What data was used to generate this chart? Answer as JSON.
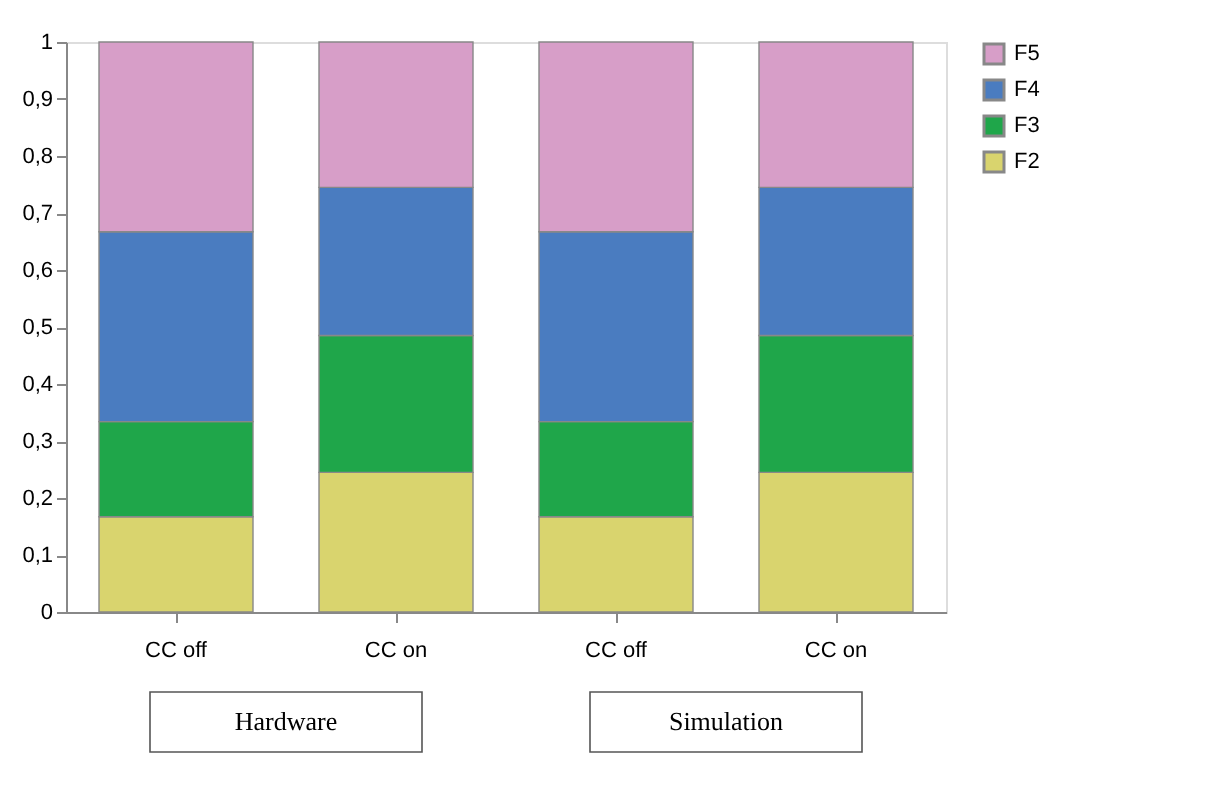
{
  "chart_data": {
    "type": "bar",
    "stacked": true,
    "categories": [
      "CC off",
      "CC on",
      "CC off",
      "CC on"
    ],
    "series": [
      {
        "name": "F2",
        "color": "#d9d46e",
        "values": [
          0.167,
          0.245,
          0.167,
          0.245
        ]
      },
      {
        "name": "F3",
        "color": "#1fa64a",
        "values": [
          0.167,
          0.24,
          0.167,
          0.24
        ]
      },
      {
        "name": "F4",
        "color": "#4a7cc0",
        "values": [
          0.333,
          0.26,
          0.333,
          0.26
        ]
      },
      {
        "name": "F5",
        "color": "#d79ec8",
        "values": [
          0.333,
          0.255,
          0.333,
          0.255
        ]
      }
    ],
    "ylim": [
      0,
      1
    ],
    "yticks": [
      0,
      {
        "value": 0.1,
        "label": "0,1"
      },
      {
        "value": 0.2,
        "label": "0,2"
      },
      {
        "value": 0.3,
        "label": "0,3"
      },
      {
        "value": 0.4,
        "label": "0,4"
      },
      {
        "value": 0.5,
        "label": "0,5"
      },
      {
        "value": 0.6,
        "label": "0,6"
      },
      {
        "value": 0.7,
        "label": "0,7"
      },
      {
        "value": 0.8,
        "label": "0,8"
      },
      {
        "value": 0.9,
        "label": "0,9"
      },
      1
    ],
    "grid": false,
    "legend": "right",
    "annotations": [
      "Hardware",
      "Simulation"
    ]
  }
}
